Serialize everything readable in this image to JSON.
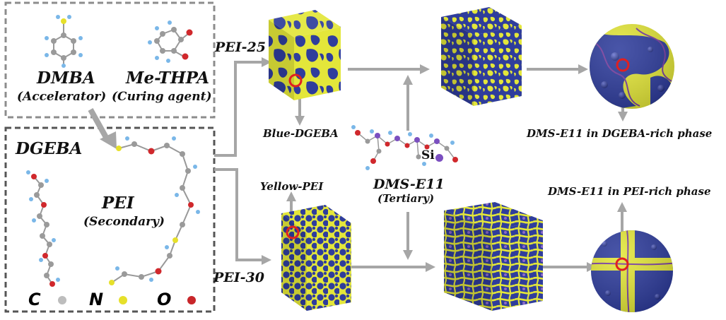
{
  "labels": {
    "dmba": "DMBA",
    "dmba_role": "(Accelerator)",
    "methpa": "Me-THPA",
    "methpa_role": "(Curing agent)",
    "dgeba": "DGEBA",
    "pei": "PEI",
    "pei_role": "(Secondary)",
    "pei25": "PEI-25",
    "pei30": "PEI-30",
    "blue_dgeba": "Blue-DGEBA",
    "yellow_pei": "Yellow-PEI",
    "dms": "DMS-E11",
    "dms_role": "(Tertiary)",
    "si": "Si",
    "dms_dgeba_phase": "DMS-E11 in DGEBA-rich phase",
    "dms_pei_phase": "DMS-E11 in PEI-rich phase"
  },
  "legend": [
    {
      "letter": "C",
      "color": "#bdbdbd"
    },
    {
      "letter": "N",
      "color": "#e6e02a"
    },
    {
      "letter": "O",
      "color": "#c8262a"
    }
  ],
  "colors": {
    "blue_phase": "#2f3d9c",
    "yellow_phase": "#e3e63a",
    "arrow": "#a6a6a6",
    "highlight": "#e02020",
    "dms_chain": "#7a3fa0",
    "hydrogen": "#7ab7e8",
    "carbon": "#9a9a9a",
    "oxygen": "#d0282c",
    "silicon": "#7b4fc0"
  }
}
